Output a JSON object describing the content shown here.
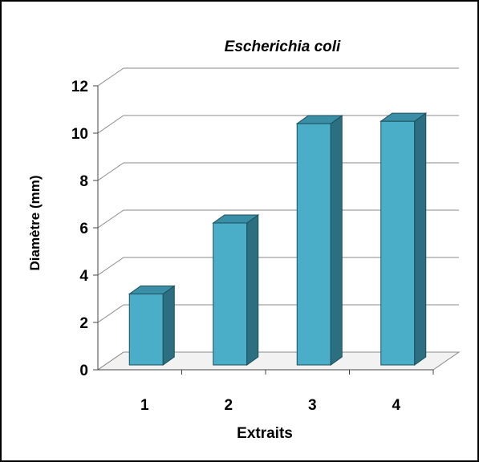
{
  "chart_data": {
    "type": "bar",
    "title": "Escherichia coli",
    "xlabel": "Extraits",
    "ylabel": "Diamètre (mm)",
    "categories": [
      "1",
      "2",
      "3",
      "4"
    ],
    "values": [
      3,
      6,
      10.2,
      10.3
    ],
    "ylim": [
      0,
      12
    ],
    "yticks": [
      "0",
      "2",
      "4",
      "6",
      "8",
      "10",
      "12"
    ],
    "grid": true,
    "legend": "none",
    "colors": {
      "bar_front": "#4aaec9",
      "bar_side": "#2c6f80",
      "bar_top": "#3a8ea5",
      "gridline": "#888888",
      "frame": "#000000"
    }
  }
}
